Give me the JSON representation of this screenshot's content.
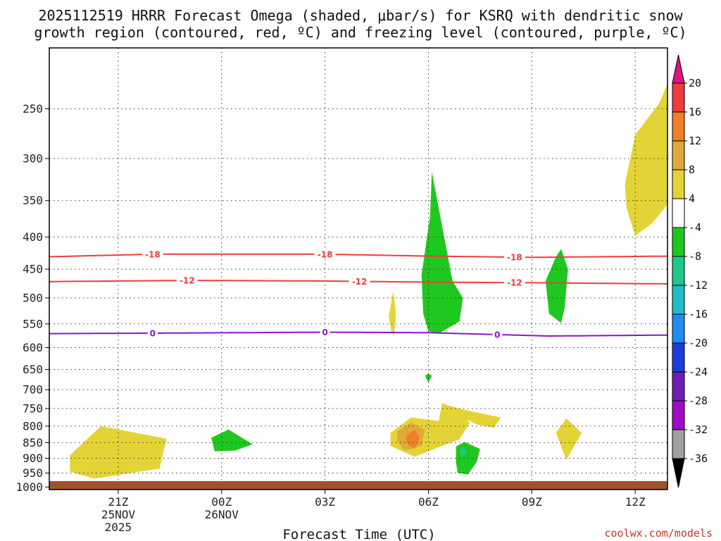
{
  "chart_data": {
    "type": "time-height cross-section",
    "title_line1": "2025112519 HRRR Forecast Omega (shaded, μbar/s) for KSRQ with dendritic snow",
    "title_line2": "growth region (contoured, red, ºC) and freezing level (contoured, purple, ºC)",
    "xlabel": "Forecast Time (UTC)",
    "credit": "coolwx.com/models",
    "x_ticks": [
      {
        "hour": 2,
        "label": "21Z",
        "sub1": "25NOV",
        "sub2": "2025"
      },
      {
        "hour": 5,
        "label": "00Z",
        "sub1": "26NOV",
        "sub2": ""
      },
      {
        "hour": 8,
        "label": "03Z",
        "sub1": "",
        "sub2": ""
      },
      {
        "hour": 11,
        "label": "06Z",
        "sub1": "",
        "sub2": ""
      },
      {
        "hour": 14,
        "label": "09Z",
        "sub1": "",
        "sub2": ""
      },
      {
        "hour": 17,
        "label": "12Z",
        "sub1": "",
        "sub2": ""
      }
    ],
    "x_range_hours": [
      0,
      18
    ],
    "y_ticks": [
      250,
      300,
      350,
      400,
      450,
      500,
      550,
      600,
      650,
      700,
      750,
      800,
      850,
      900,
      950,
      1000
    ],
    "y_range_mb": [
      200,
      1020
    ],
    "colorbar": {
      "labels": [
        "20",
        "16",
        "12",
        "8",
        "4",
        "-4",
        "-8",
        "-12",
        "-16",
        "-20",
        "-24",
        "-28",
        "-32",
        "-36"
      ],
      "colors": [
        "#dc1480",
        "#ee3c3c",
        "#ee7f28",
        "#e0a838",
        "#e3d337",
        "#ffffff",
        "#1ec81e",
        "#1ec88a",
        "#1ebec8",
        "#1e8cf0",
        "#1e3cdc",
        "#6e1eb4",
        "#a00ac8",
        "#a0a0a0",
        "#000000"
      ]
    },
    "contours": [
      {
        "name": "dgz-minus18",
        "value": "-18",
        "color": "#ee3c3c",
        "points": [
          [
            0,
            430
          ],
          [
            3,
            426
          ],
          [
            8,
            426
          ],
          [
            11,
            429
          ],
          [
            14,
            431
          ],
          [
            18,
            429
          ]
        ],
        "label_hours": [
          3,
          8,
          13.5
        ]
      },
      {
        "name": "dgz-minus12",
        "value": "-12",
        "color": "#ee3c3c",
        "points": [
          [
            0,
            471
          ],
          [
            4,
            469
          ],
          [
            8,
            470
          ],
          [
            11,
            472
          ],
          [
            14,
            473
          ],
          [
            18,
            475
          ]
        ],
        "label_hours": [
          4,
          9,
          13.5
        ]
      },
      {
        "name": "freezing-level",
        "value": "0",
        "color": "#8c14c8",
        "points": [
          [
            0,
            570
          ],
          [
            3,
            569
          ],
          [
            8,
            567
          ],
          [
            11,
            568
          ],
          [
            14.5,
            575
          ],
          [
            18,
            573
          ]
        ],
        "label_hours": [
          3,
          8,
          13
        ]
      }
    ],
    "regions": [
      {
        "name": "omega-pos-a",
        "color": "#e3d337",
        "points": [
          [
            0.6,
            890
          ],
          [
            1.5,
            800
          ],
          [
            3.4,
            838
          ],
          [
            3.2,
            935
          ],
          [
            1.3,
            970
          ],
          [
            0.6,
            945
          ]
        ]
      },
      {
        "name": "omega-pos-b",
        "color": "#e3d337",
        "points": [
          [
            9.9,
            820
          ],
          [
            10.5,
            775
          ],
          [
            11.3,
            785
          ],
          [
            11.4,
            735
          ],
          [
            11.9,
            755
          ],
          [
            12.2,
            790
          ],
          [
            11.9,
            840
          ],
          [
            11.4,
            860
          ],
          [
            10.6,
            895
          ],
          [
            9.9,
            860
          ]
        ]
      },
      {
        "name": "omega-pos-c",
        "color": "#e0a838",
        "points": [
          [
            10.1,
            815
          ],
          [
            10.5,
            790
          ],
          [
            10.9,
            810
          ],
          [
            10.8,
            860
          ],
          [
            10.3,
            875
          ],
          [
            10.1,
            845
          ]
        ]
      },
      {
        "name": "omega-pos-d",
        "color": "#ee7f28",
        "points": [
          [
            10.35,
            830
          ],
          [
            10.6,
            810
          ],
          [
            10.75,
            835
          ],
          [
            10.6,
            870
          ],
          [
            10.38,
            852
          ]
        ]
      },
      {
        "name": "omega-pos-e",
        "color": "#e3d337",
        "points": [
          [
            11.5,
            740
          ],
          [
            12.1,
            755
          ],
          [
            13.1,
            775
          ],
          [
            12.9,
            805
          ],
          [
            12.4,
            795
          ],
          [
            12.0,
            775
          ]
        ]
      },
      {
        "name": "omega-pos-f",
        "color": "#e3d337",
        "points": [
          [
            9.85,
            535
          ],
          [
            9.98,
            487
          ],
          [
            10.06,
            530
          ],
          [
            10.0,
            575
          ],
          [
            9.93,
            568
          ]
        ]
      },
      {
        "name": "omega-pos-g",
        "color": "#e3d337",
        "points": [
          [
            14.7,
            820
          ],
          [
            15.0,
            778
          ],
          [
            15.45,
            820
          ],
          [
            15.0,
            905
          ]
        ]
      },
      {
        "name": "omega-pos-h",
        "color": "#e3d337",
        "points": [
          [
            16.7,
            330
          ],
          [
            17.0,
            275
          ],
          [
            17.7,
            245
          ],
          [
            18.0,
            228
          ],
          [
            18.0,
            355
          ],
          [
            17.5,
            380
          ],
          [
            17.0,
            398
          ],
          [
            16.75,
            360
          ]
        ]
      },
      {
        "name": "omega-neg-a",
        "color": "#1ec81e",
        "points": [
          [
            4.7,
            835
          ],
          [
            5.2,
            810
          ],
          [
            5.9,
            855
          ],
          [
            5.4,
            875
          ],
          [
            4.8,
            878
          ]
        ]
      },
      {
        "name": "omega-neg-b",
        "color": "#1ec81e",
        "points": [
          [
            10.9,
            665
          ],
          [
            11.0,
            660
          ],
          [
            11.1,
            665
          ],
          [
            11.0,
            682
          ]
        ]
      },
      {
        "name": "omega-neg-c",
        "color": "#1ec81e",
        "points": [
          [
            10.8,
            460
          ],
          [
            11.05,
            370
          ],
          [
            11.1,
            315
          ],
          [
            11.3,
            360
          ],
          [
            11.7,
            470
          ],
          [
            12.0,
            500
          ],
          [
            11.9,
            545
          ],
          [
            11.3,
            570
          ],
          [
            11.0,
            565
          ],
          [
            10.85,
            530
          ]
        ]
      },
      {
        "name": "omega-neg-d",
        "color": "#1ec81e",
        "points": [
          [
            11.8,
            862
          ],
          [
            12.05,
            848
          ],
          [
            12.5,
            870
          ],
          [
            12.4,
            912
          ],
          [
            12.15,
            955
          ],
          [
            11.85,
            950
          ],
          [
            11.8,
            915
          ]
        ]
      },
      {
        "name": "omega-neg-e",
        "color": "#1ec88a",
        "points": [
          [
            11.9,
            878
          ],
          [
            12.0,
            862
          ],
          [
            12.12,
            878
          ],
          [
            12.0,
            900
          ]
        ]
      },
      {
        "name": "omega-neg-f",
        "color": "#1ec81e",
        "points": [
          [
            14.4,
            470
          ],
          [
            14.7,
            430
          ],
          [
            14.85,
            418
          ],
          [
            15.05,
            450
          ],
          [
            14.95,
            520
          ],
          [
            14.85,
            548
          ],
          [
            14.5,
            530
          ]
        ]
      }
    ]
  }
}
